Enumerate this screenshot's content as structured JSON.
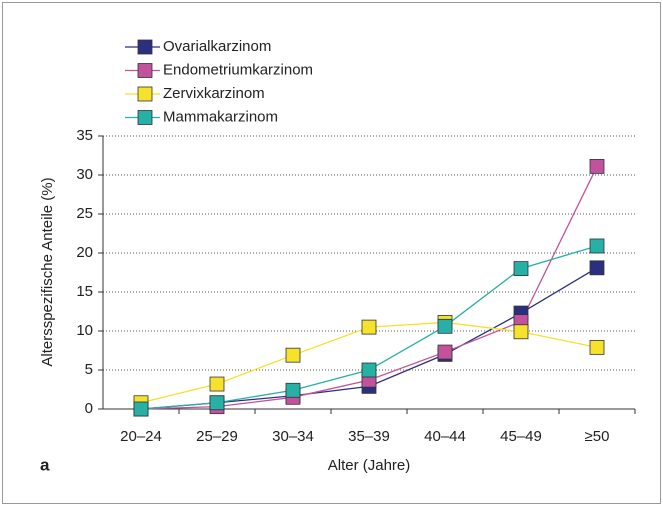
{
  "chart_data": {
    "type": "line",
    "annotation": "a",
    "x_label": "Alter (Jahre)",
    "y_label": "Altersspezifische Anteile (%)",
    "categories": [
      "20–24",
      "25–29",
      "30–34",
      "35–39",
      "40–44",
      "45–49",
      "≥50"
    ],
    "series": [
      {
        "name": "Ovarialkarzinom",
        "color": "#2b2f80",
        "values": [
          0,
          0.8,
          1.7,
          2.9,
          7.0,
          12.3,
          18.1
        ]
      },
      {
        "name": "Endometriumkarzinom",
        "color": "#c3529c",
        "values": [
          0,
          0.3,
          1.5,
          3.7,
          7.3,
          11.2,
          31.1
        ]
      },
      {
        "name": "Zervixkarzinom",
        "color": "#f6e12c",
        "values": [
          0.8,
          3.2,
          6.9,
          10.5,
          11.1,
          9.9,
          7.9
        ]
      },
      {
        "name": "Mammakarzinom",
        "color": "#26b0a6",
        "values": [
          0,
          0.8,
          2.4,
          5.0,
          10.6,
          18.0,
          20.9
        ]
      }
    ],
    "ylim": [
      0,
      35
    ],
    "yticks": [
      0,
      5,
      10,
      15,
      20,
      25,
      30,
      35
    ],
    "grid": true
  }
}
